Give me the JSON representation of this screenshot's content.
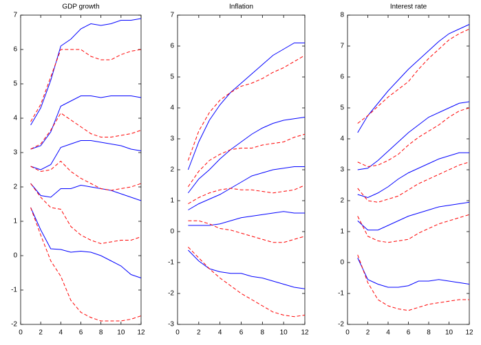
{
  "chart_data": [
    {
      "type": "line",
      "title": "GDP growth",
      "x": [
        1,
        2,
        3,
        4,
        5,
        6,
        7,
        8,
        9,
        10,
        11,
        12
      ],
      "xlim": [
        0,
        12
      ],
      "xticks": [
        0,
        2,
        4,
        6,
        8,
        10,
        12
      ],
      "ylim": [
        -2,
        7
      ],
      "yticks": [
        -2,
        -1,
        0,
        1,
        2,
        3,
        4,
        5,
        6,
        7
      ],
      "series": [
        {
          "color": "#0000ff",
          "style": "solid",
          "values": [
            3.8,
            4.3,
            5.1,
            6.1,
            6.3,
            6.6,
            6.75,
            6.7,
            6.75,
            6.85,
            6.85,
            6.9
          ]
        },
        {
          "color": "#0000ff",
          "style": "solid",
          "values": [
            3.1,
            3.2,
            3.6,
            4.35,
            4.5,
            4.65,
            4.65,
            4.6,
            4.65,
            4.65,
            4.65,
            4.6
          ]
        },
        {
          "color": "#0000ff",
          "style": "solid",
          "values": [
            2.6,
            2.5,
            2.65,
            3.15,
            3.25,
            3.35,
            3.35,
            3.3,
            3.25,
            3.2,
            3.1,
            3.05
          ]
        },
        {
          "color": "#0000ff",
          "style": "solid",
          "values": [
            2.1,
            1.75,
            1.7,
            1.95,
            1.95,
            2.05,
            2.0,
            1.95,
            1.9,
            1.8,
            1.7,
            1.6
          ]
        },
        {
          "color": "#0000ff",
          "style": "solid",
          "values": [
            1.4,
            0.75,
            0.2,
            0.18,
            0.1,
            0.13,
            0.1,
            0.0,
            -0.15,
            -0.3,
            -0.55,
            -0.65
          ]
        },
        {
          "color": "#ff0000",
          "style": "dashed",
          "values": [
            3.9,
            4.4,
            5.2,
            6.0,
            6.0,
            6.0,
            5.8,
            5.7,
            5.7,
            5.85,
            5.95,
            6.0
          ]
        },
        {
          "color": "#ff0000",
          "style": "dashed",
          "values": [
            3.1,
            3.25,
            3.65,
            4.15,
            3.95,
            3.75,
            3.55,
            3.45,
            3.45,
            3.5,
            3.55,
            3.65
          ]
        },
        {
          "color": "#ff0000",
          "style": "dashed",
          "values": [
            2.6,
            2.45,
            2.5,
            2.75,
            2.45,
            2.25,
            2.1,
            1.95,
            1.9,
            1.95,
            2.0,
            2.1
          ]
        },
        {
          "color": "#ff0000",
          "style": "dashed",
          "values": [
            2.1,
            1.7,
            1.4,
            1.35,
            0.85,
            0.6,
            0.45,
            0.35,
            0.4,
            0.45,
            0.45,
            0.55
          ]
        },
        {
          "color": "#ff0000",
          "style": "dashed",
          "values": [
            1.4,
            0.6,
            -0.15,
            -0.6,
            -1.3,
            -1.65,
            -1.8,
            -1.9,
            -1.9,
            -1.9,
            -1.85,
            -1.75
          ]
        }
      ]
    },
    {
      "type": "line",
      "title": "Inflation",
      "x": [
        1,
        2,
        3,
        4,
        5,
        6,
        7,
        8,
        9,
        10,
        11,
        12
      ],
      "xlim": [
        0,
        12
      ],
      "xticks": [
        0,
        2,
        4,
        6,
        8,
        10,
        12
      ],
      "ylim": [
        -3,
        7
      ],
      "yticks": [
        -3,
        -2,
        -1,
        0,
        1,
        2,
        3,
        4,
        5,
        6,
        7
      ],
      "series": [
        {
          "color": "#0000ff",
          "style": "solid",
          "values": [
            2.0,
            2.9,
            3.6,
            4.1,
            4.5,
            4.8,
            5.1,
            5.4,
            5.7,
            5.9,
            6.1,
            6.1
          ]
        },
        {
          "color": "#0000ff",
          "style": "solid",
          "values": [
            1.25,
            1.7,
            2.0,
            2.35,
            2.65,
            2.9,
            3.15,
            3.35,
            3.5,
            3.6,
            3.65,
            3.7
          ]
        },
        {
          "color": "#0000ff",
          "style": "solid",
          "values": [
            0.7,
            0.9,
            1.05,
            1.2,
            1.4,
            1.6,
            1.8,
            1.9,
            2.0,
            2.05,
            2.1,
            2.1
          ]
        },
        {
          "color": "#0000ff",
          "style": "solid",
          "values": [
            0.2,
            0.2,
            0.2,
            0.25,
            0.35,
            0.45,
            0.5,
            0.55,
            0.6,
            0.65,
            0.6,
            0.6
          ]
        },
        {
          "color": "#0000ff",
          "style": "solid",
          "values": [
            -0.6,
            -0.95,
            -1.2,
            -1.3,
            -1.35,
            -1.35,
            -1.45,
            -1.5,
            -1.6,
            -1.7,
            -1.8,
            -1.85
          ]
        },
        {
          "color": "#ff0000",
          "style": "dashed",
          "values": [
            2.3,
            3.25,
            3.85,
            4.25,
            4.5,
            4.7,
            4.8,
            4.95,
            5.15,
            5.3,
            5.5,
            5.7
          ]
        },
        {
          "color": "#ff0000",
          "style": "dashed",
          "values": [
            1.45,
            1.95,
            2.3,
            2.5,
            2.65,
            2.7,
            2.7,
            2.8,
            2.85,
            2.9,
            3.05,
            3.15
          ]
        },
        {
          "color": "#ff0000",
          "style": "dashed",
          "values": [
            0.9,
            1.1,
            1.25,
            1.35,
            1.4,
            1.35,
            1.35,
            1.3,
            1.25,
            1.3,
            1.35,
            1.5
          ]
        },
        {
          "color": "#ff0000",
          "style": "dashed",
          "values": [
            0.35,
            0.35,
            0.25,
            0.1,
            0.05,
            -0.05,
            -0.15,
            -0.25,
            -0.35,
            -0.35,
            -0.25,
            -0.15
          ]
        },
        {
          "color": "#ff0000",
          "style": "dashed",
          "values": [
            -0.5,
            -0.85,
            -1.2,
            -1.5,
            -1.75,
            -2.0,
            -2.2,
            -2.4,
            -2.6,
            -2.7,
            -2.75,
            -2.7
          ]
        }
      ]
    },
    {
      "type": "line",
      "title": "Interest rate",
      "x": [
        1,
        2,
        3,
        4,
        5,
        6,
        7,
        8,
        9,
        10,
        11,
        12
      ],
      "xlim": [
        0,
        12
      ],
      "xticks": [
        0,
        2,
        4,
        6,
        8,
        10,
        12
      ],
      "ylim": [
        -2,
        8
      ],
      "yticks": [
        -2,
        -1,
        0,
        1,
        2,
        3,
        4,
        5,
        6,
        7,
        8
      ],
      "series": [
        {
          "color": "#0000ff",
          "style": "solid",
          "values": [
            4.2,
            4.75,
            5.15,
            5.55,
            5.9,
            6.25,
            6.55,
            6.85,
            7.15,
            7.4,
            7.55,
            7.7
          ]
        },
        {
          "color": "#0000ff",
          "style": "solid",
          "values": [
            3.0,
            3.05,
            3.3,
            3.6,
            3.9,
            4.2,
            4.45,
            4.7,
            4.85,
            5.0,
            5.15,
            5.2
          ]
        },
        {
          "color": "#0000ff",
          "style": "solid",
          "values": [
            2.2,
            2.1,
            2.25,
            2.45,
            2.7,
            2.9,
            3.05,
            3.2,
            3.35,
            3.45,
            3.55,
            3.55
          ]
        },
        {
          "color": "#0000ff",
          "style": "solid",
          "values": [
            1.35,
            1.05,
            1.05,
            1.2,
            1.35,
            1.5,
            1.6,
            1.7,
            1.8,
            1.85,
            1.9,
            1.95
          ]
        },
        {
          "color": "#0000ff",
          "style": "solid",
          "values": [
            0.15,
            -0.55,
            -0.7,
            -0.8,
            -0.8,
            -0.75,
            -0.6,
            -0.6,
            -0.55,
            -0.6,
            -0.65,
            -0.7
          ]
        },
        {
          "color": "#ff0000",
          "style": "dashed",
          "values": [
            4.5,
            4.75,
            5.05,
            5.35,
            5.6,
            5.85,
            6.25,
            6.6,
            6.9,
            7.2,
            7.4,
            7.55
          ]
        },
        {
          "color": "#ff0000",
          "style": "dashed",
          "values": [
            3.25,
            3.1,
            3.15,
            3.3,
            3.5,
            3.8,
            4.05,
            4.25,
            4.45,
            4.7,
            4.9,
            5.0
          ]
        },
        {
          "color": "#ff0000",
          "style": "dashed",
          "values": [
            2.4,
            2.0,
            1.95,
            2.05,
            2.15,
            2.35,
            2.55,
            2.7,
            2.85,
            3.0,
            3.15,
            3.25
          ]
        },
        {
          "color": "#ff0000",
          "style": "dashed",
          "values": [
            1.5,
            0.85,
            0.7,
            0.65,
            0.7,
            0.75,
            0.95,
            1.1,
            1.25,
            1.35,
            1.45,
            1.55
          ]
        },
        {
          "color": "#ff0000",
          "style": "dashed",
          "values": [
            0.25,
            -0.65,
            -1.2,
            -1.4,
            -1.5,
            -1.55,
            -1.45,
            -1.35,
            -1.3,
            -1.25,
            -1.2,
            -1.2
          ]
        }
      ]
    }
  ]
}
